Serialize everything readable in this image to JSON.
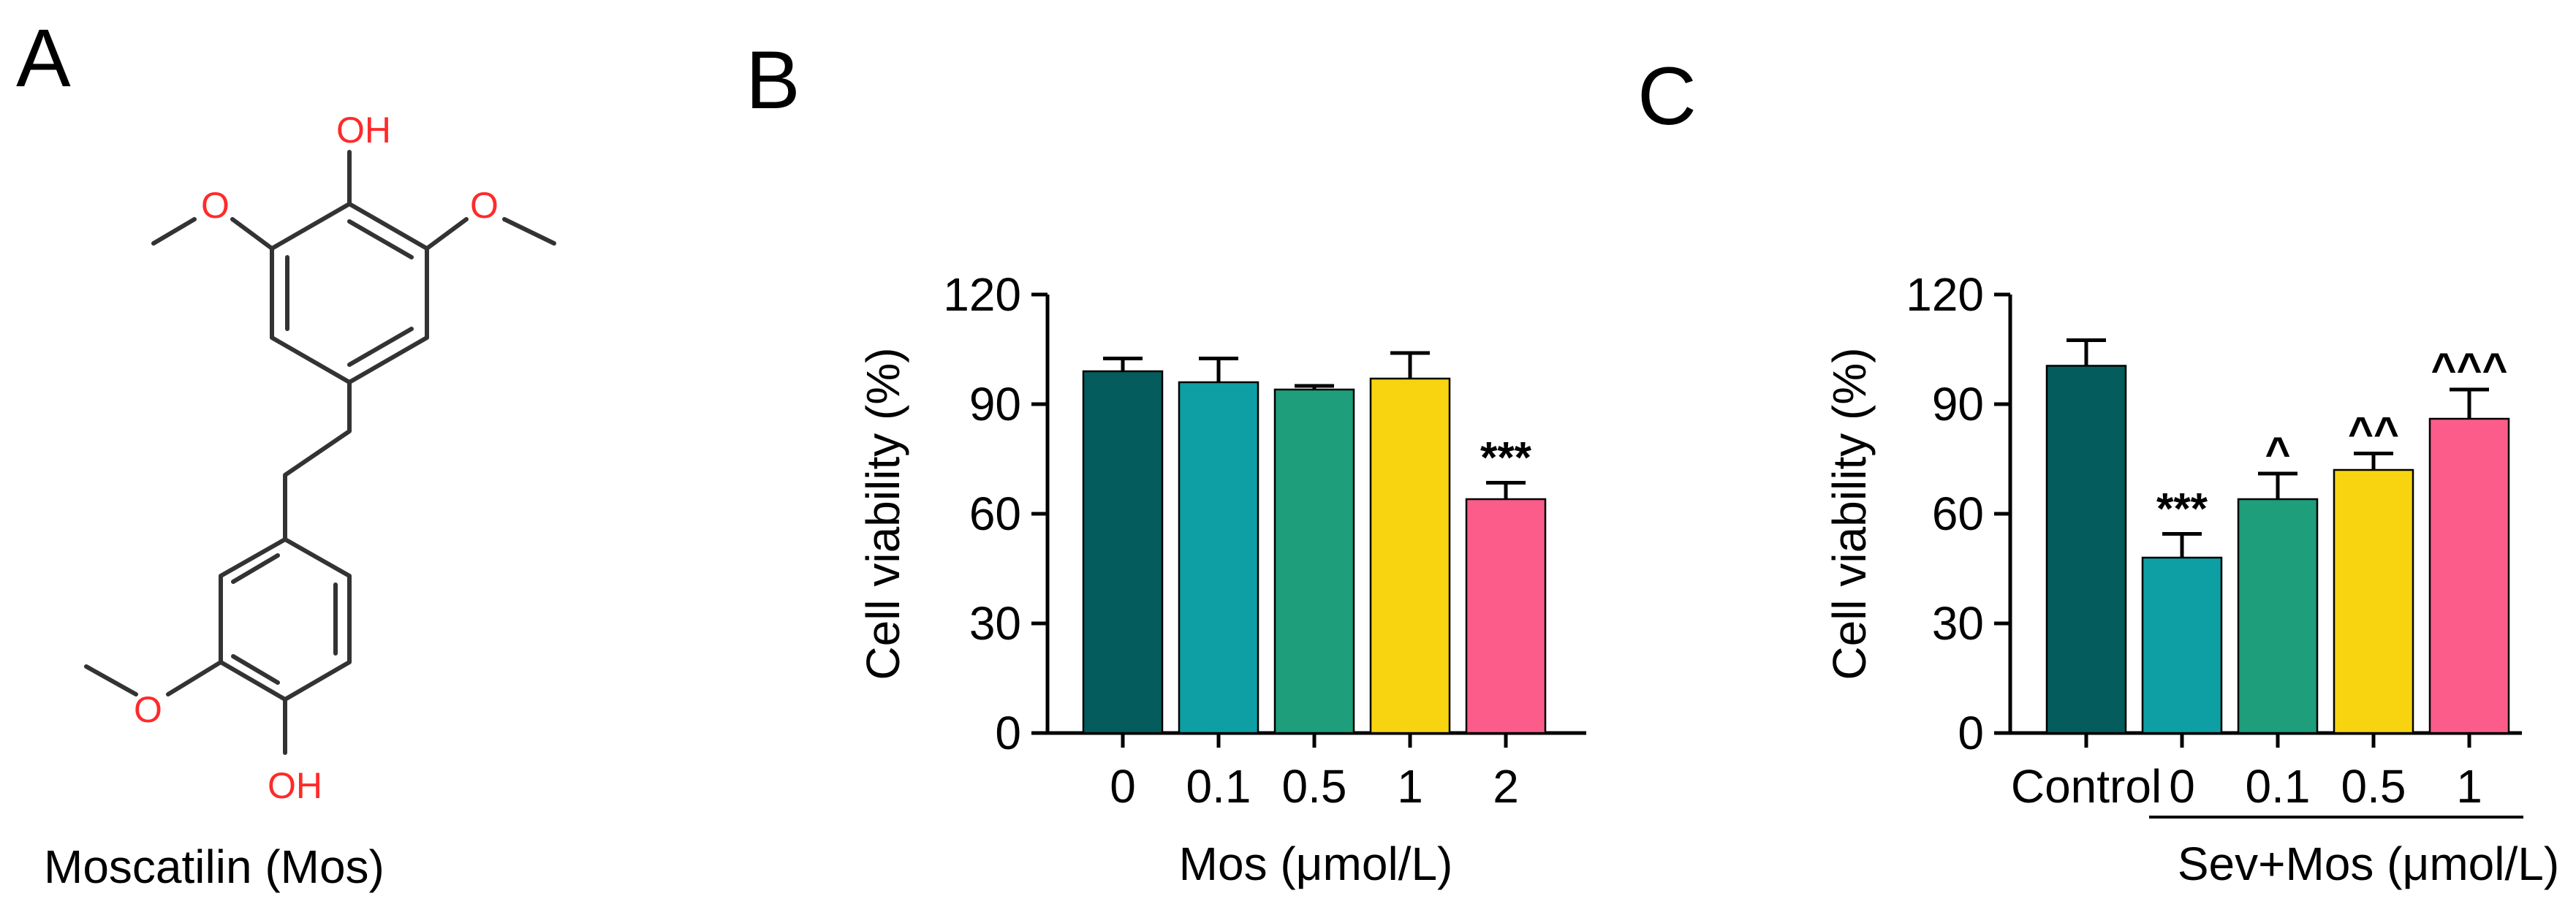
{
  "panels": {
    "a": {
      "letter": "A",
      "caption": "Moscatilin (Mos)",
      "atoms": {
        "o1": "O",
        "o2": "O",
        "o3": "O",
        "oh1": "OH",
        "oh2": "OH"
      }
    },
    "b": {
      "letter": "B"
    },
    "c": {
      "letter": "C"
    }
  },
  "chart_data": [
    {
      "type": "bar",
      "panel": "B",
      "categories": [
        "0",
        "0.1",
        "0.5",
        "1",
        "2"
      ],
      "values": [
        99,
        96,
        94,
        97,
        64
      ],
      "errors": [
        3.5,
        6.5,
        1,
        7,
        4.5
      ],
      "colors": [
        "#045c5c",
        "#0e9fa5",
        "#1e9e7a",
        "#f7d40f",
        "#fb5c8a"
      ],
      "significance": [
        "",
        "",
        "",
        "",
        "***"
      ],
      "xlabel": "Mos (μmol/L)",
      "ylabel": "Cell viability (%)",
      "ylim": [
        0,
        120
      ],
      "yticks": [
        "0",
        "30",
        "60",
        "90",
        "120"
      ]
    },
    {
      "type": "bar",
      "panel": "C",
      "categories": [
        "Control",
        "0",
        "0.1",
        "0.5",
        "1"
      ],
      "values": [
        100.5,
        48,
        64,
        72,
        86
      ],
      "errors": [
        7,
        6.5,
        7,
        4.5,
        8
      ],
      "colors": [
        "#045c5c",
        "#0e9fa5",
        "#1e9e7a",
        "#f7d40f",
        "#fb5c8a"
      ],
      "significance": [
        "",
        "***",
        "^",
        "^^",
        "^^^"
      ],
      "xlabel": "Sev+Mos (μmol/L)",
      "ylabel": "Cell viability (%)",
      "ylim": [
        0,
        120
      ],
      "yticks": [
        "0",
        "30",
        "60",
        "90",
        "120"
      ]
    }
  ]
}
